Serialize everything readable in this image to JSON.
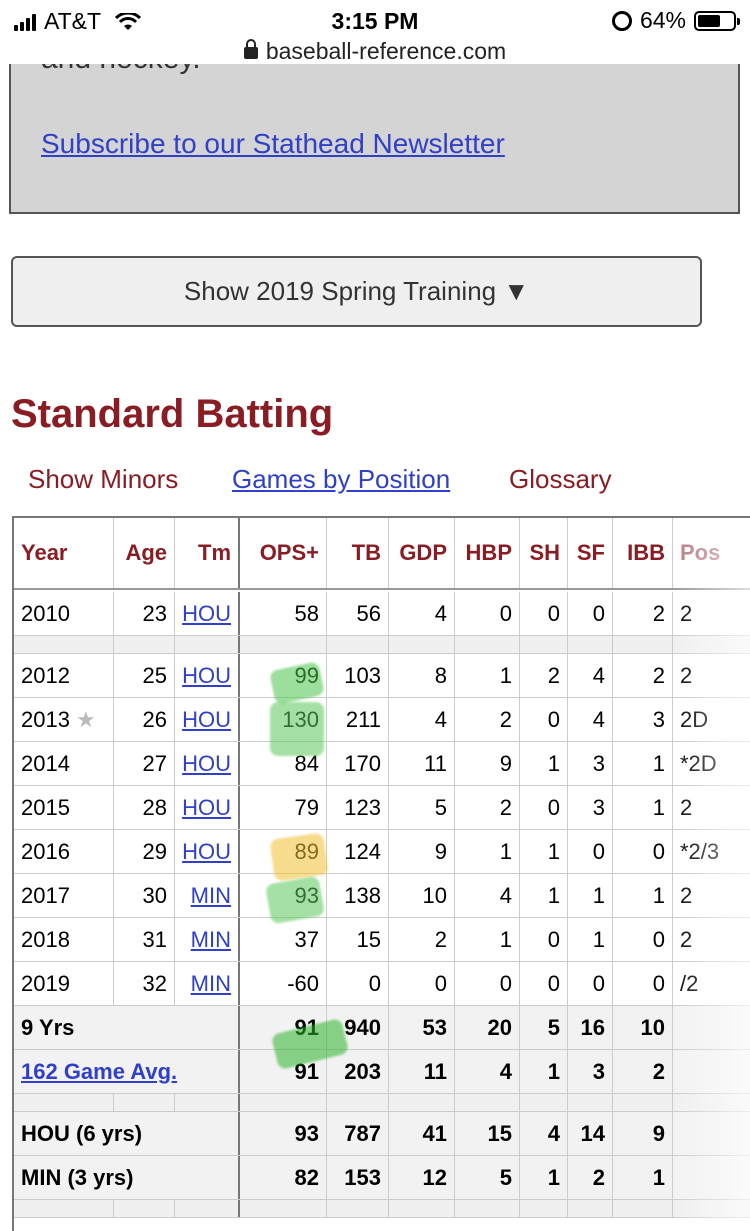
{
  "status": {
    "carrier": "AT&T",
    "time": "3:15 PM",
    "battery": "64%",
    "battery_level": 0.64,
    "url": "baseball-reference.com"
  },
  "newsletter": {
    "clipped_text": "and hockey.",
    "link": "Subscribe to our Stathead Newsletter"
  },
  "spring_button": "Show 2019 Spring Training ▼",
  "section_title": "Standard Batting",
  "links": {
    "minors": "Show Minors",
    "games": "Games by Position",
    "glossary": "Glossary"
  },
  "columns": [
    "Year",
    "Age",
    "Tm",
    "OPS+",
    "TB",
    "GDP",
    "HBP",
    "SH",
    "SF",
    "IBB",
    "Pos"
  ],
  "rows": [
    {
      "year": "2010",
      "age": "23",
      "tm": "HOU",
      "ops": "58",
      "tb": "56",
      "gdp": "4",
      "hbp": "0",
      "sh": "0",
      "sf": "0",
      "ibb": "2",
      "pos": "2"
    },
    {
      "year": "2012",
      "age": "25",
      "tm": "HOU",
      "ops": "99",
      "tb": "103",
      "gdp": "8",
      "hbp": "1",
      "sh": "2",
      "sf": "4",
      "ibb": "2",
      "pos": "2"
    },
    {
      "year": "2013",
      "age": "26",
      "tm": "HOU",
      "ops": "130",
      "tb": "211",
      "gdp": "4",
      "hbp": "2",
      "sh": "0",
      "sf": "4",
      "ibb": "3",
      "pos": "2D",
      "star": "★"
    },
    {
      "year": "2014",
      "age": "27",
      "tm": "HOU",
      "ops": "84",
      "tb": "170",
      "gdp": "11",
      "hbp": "9",
      "sh": "1",
      "sf": "3",
      "ibb": "1",
      "pos": "*2D"
    },
    {
      "year": "2015",
      "age": "28",
      "tm": "HOU",
      "ops": "79",
      "tb": "123",
      "gdp": "5",
      "hbp": "2",
      "sh": "0",
      "sf": "3",
      "ibb": "1",
      "pos": "2"
    },
    {
      "year": "2016",
      "age": "29",
      "tm": "HOU",
      "ops": "89",
      "tb": "124",
      "gdp": "9",
      "hbp": "1",
      "sh": "1",
      "sf": "0",
      "ibb": "0",
      "pos": "*2/3"
    },
    {
      "year": "2017",
      "age": "30",
      "tm": "MIN",
      "ops": "93",
      "tb": "138",
      "gdp": "10",
      "hbp": "4",
      "sh": "1",
      "sf": "1",
      "ibb": "1",
      "pos": "2"
    },
    {
      "year": "2018",
      "age": "31",
      "tm": "MIN",
      "ops": "37",
      "tb": "15",
      "gdp": "2",
      "hbp": "1",
      "sh": "0",
      "sf": "1",
      "ibb": "0",
      "pos": "2"
    },
    {
      "year": "2019",
      "age": "32",
      "tm": "MIN",
      "ops": "-60",
      "tb": "0",
      "gdp": "0",
      "hbp": "0",
      "sh": "0",
      "sf": "0",
      "ibb": "0",
      "pos": "/2"
    }
  ],
  "totals": [
    {
      "label": "9 Yrs",
      "ops": "91",
      "tb": "940",
      "gdp": "53",
      "hbp": "20",
      "sh": "5",
      "sf": "16",
      "ibb": "10"
    },
    {
      "label": "162 Game Avg.",
      "ops": "91",
      "tb": "203",
      "gdp": "11",
      "hbp": "4",
      "sh": "1",
      "sf": "3",
      "ibb": "2"
    },
    {
      "label": "HOU (6 yrs)",
      "ops": "93",
      "tb": "787",
      "gdp": "41",
      "hbp": "15",
      "sh": "4",
      "sf": "14",
      "ibb": "9"
    },
    {
      "label": "MIN (3 yrs)",
      "ops": "82",
      "tb": "153",
      "gdp": "12",
      "hbp": "5",
      "sh": "1",
      "sf": "2",
      "ibb": "1"
    }
  ]
}
